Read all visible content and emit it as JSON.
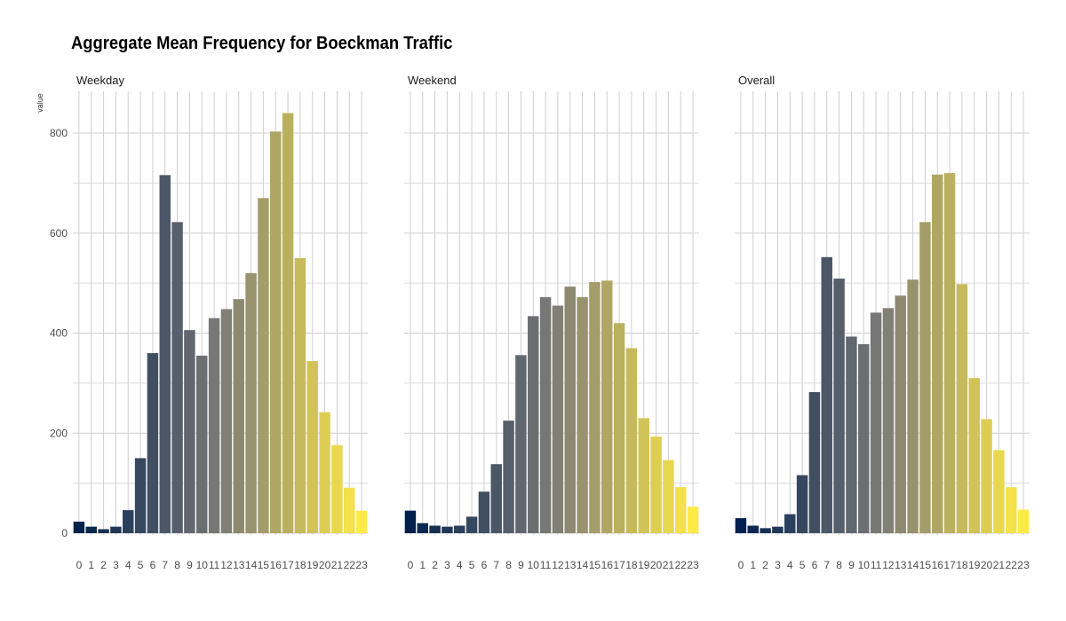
{
  "chart_title": "Aggregate Mean Frequency for Boeckman Traffic",
  "ylabel": "value",
  "chart_data": {
    "type": "bar",
    "title": "Aggregate Mean Frequency for Boeckman Traffic",
    "xlabel": "",
    "ylabel": "value",
    "ylim": [
      0,
      880
    ],
    "yticks": [
      0,
      200,
      400,
      600,
      800
    ],
    "grid": true,
    "categories": [
      "0",
      "1",
      "2",
      "3",
      "4",
      "5",
      "6",
      "7",
      "8",
      "9",
      "10",
      "11",
      "12",
      "13",
      "14",
      "15",
      "16",
      "17",
      "18",
      "19",
      "20",
      "21",
      "22",
      "23"
    ],
    "color_scale": [
      "#00204D",
      "#7C7B78",
      "#FFEA46"
    ],
    "series": [
      {
        "name": "Weekday",
        "values": [
          23,
          13,
          8,
          13,
          46,
          150,
          360,
          716,
          622,
          406,
          355,
          430,
          448,
          468,
          520,
          670,
          803,
          840,
          550,
          344,
          242,
          176,
          91,
          45
        ]
      },
      {
        "name": "Weekend",
        "values": [
          45,
          20,
          15,
          13,
          15,
          33,
          83,
          138,
          225,
          356,
          434,
          472,
          455,
          493,
          472,
          502,
          505,
          420,
          370,
          230,
          193,
          146,
          92,
          53
        ]
      },
      {
        "name": "Overall",
        "values": [
          30,
          15,
          10,
          13,
          38,
          116,
          282,
          552,
          509,
          393,
          378,
          441,
          450,
          475,
          507,
          622,
          717,
          720,
          498,
          310,
          228,
          166,
          92,
          47
        ]
      }
    ]
  }
}
